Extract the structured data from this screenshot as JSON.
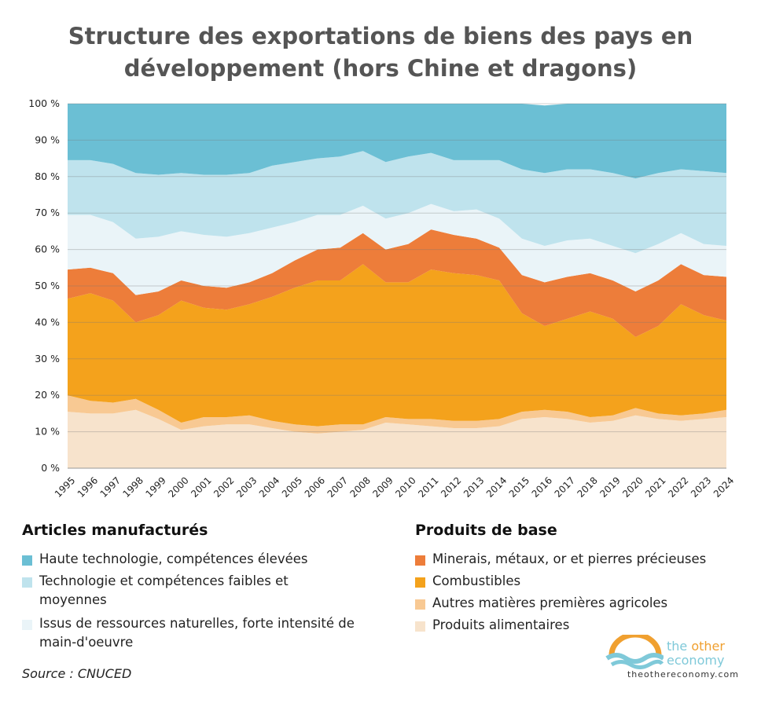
{
  "title": "Structure des exportations de biens des pays en développement (hors Chine et dragons)",
  "source": "Source : CNUCED",
  "brand": {
    "name_part1": "the ",
    "name_part2": "other",
    "name_line2": "economy",
    "url": "theothereconomy.com"
  },
  "legend": {
    "group1_title": "Articles manufacturés",
    "group2_title": "Produits de base",
    "group1_items": [
      {
        "label": "Haute technologie, compétences élevées",
        "color": "#6bbfd4"
      },
      {
        "label": "Technologie et compétences faibles et moyennes",
        "color": "#bfe3ed"
      },
      {
        "label": "Issus de ressources naturelles, forte intensité de main-d'oeuvre",
        "color": "#eaf4f8"
      }
    ],
    "group2_items": [
      {
        "label": "Minerais, métaux, or et pierres précieuses",
        "color": "#ed7d3a"
      },
      {
        "label": "Combustibles",
        "color": "#f4a21c"
      },
      {
        "label": "Autres matières premières agricoles",
        "color": "#f8c993"
      },
      {
        "label": "Produits alimentaires",
        "color": "#f7e3cc"
      }
    ]
  },
  "chart_data": {
    "type": "area",
    "stacked": true,
    "x": [
      "1995",
      "1996",
      "1997",
      "1998",
      "1999",
      "2000",
      "2001",
      "2002",
      "2003",
      "2004",
      "2005",
      "2006",
      "2007",
      "2008",
      "2009",
      "2010",
      "2011",
      "2012",
      "2013",
      "2014",
      "2015",
      "2016",
      "2017",
      "2018",
      "2019",
      "2020",
      "2021",
      "2022",
      "2023",
      "2024"
    ],
    "ylim": [
      0,
      100
    ],
    "yticks": [
      "0 %",
      "10 %",
      "20 %",
      "30 %",
      "40 %",
      "50 %",
      "60 %",
      "70 %",
      "80 %",
      "90 %",
      "100 %"
    ],
    "grid": true,
    "series": [
      {
        "name": "Produits alimentaires",
        "color": "#f7e3cc",
        "values": [
          15.5,
          15,
          15,
          16,
          13.5,
          10.5,
          11.5,
          12,
          12,
          11,
          10,
          9.5,
          10,
          10.5,
          12.5,
          12,
          11.5,
          11,
          11,
          11.5,
          13.5,
          14,
          13.5,
          12.5,
          13,
          14.5,
          13.5,
          13,
          13.5,
          14
        ]
      },
      {
        "name": "Autres matières premières agricoles",
        "color": "#f8c993",
        "values": [
          4.5,
          3.5,
          3,
          3,
          2.5,
          2,
          2.5,
          2,
          2.5,
          2,
          2,
          2,
          2,
          1.5,
          1.5,
          1.5,
          2,
          2,
          2,
          2,
          2,
          2,
          2,
          1.5,
          1.5,
          2,
          1.5,
          1.5,
          1.5,
          2
        ]
      },
      {
        "name": "Combustibles",
        "color": "#f4a21c",
        "values": [
          26.5,
          29.5,
          28,
          21,
          26,
          33.5,
          30,
          29.5,
          30.5,
          34,
          37.5,
          40,
          39.5,
          44,
          37,
          37.5,
          41,
          40.5,
          40,
          38,
          27,
          23,
          25.5,
          29,
          26.5,
          19.5,
          24,
          30.5,
          27,
          24.5
        ]
      },
      {
        "name": "Minerais, métaux, or et pierres précieuses",
        "color": "#ed7d3a",
        "values": [
          8,
          7,
          7.5,
          7.5,
          6.5,
          5.5,
          6,
          6,
          6,
          6.5,
          7.5,
          8.5,
          9,
          8.5,
          9,
          10.5,
          11,
          10.5,
          10,
          9,
          10.5,
          12,
          11.5,
          10.5,
          10.5,
          12.5,
          12.5,
          11,
          11,
          12
        ]
      },
      {
        "name": "Issus de ressources naturelles, forte intensité de main-d'oeuvre",
        "color": "#eaf4f8",
        "values": [
          15,
          14.5,
          14,
          15.5,
          15,
          13.5,
          14,
          14,
          13.5,
          12.5,
          10.5,
          9.5,
          9,
          7.5,
          8.5,
          8.5,
          7,
          6.5,
          8,
          8,
          10,
          10,
          10,
          9.5,
          9.5,
          10.5,
          10,
          8.5,
          8.5,
          8.5
        ]
      },
      {
        "name": "Technologie et compétences faibles et moyennes",
        "color": "#bfe3ed",
        "values": [
          15,
          15,
          16,
          18,
          17,
          16,
          16.5,
          17,
          16.5,
          17,
          16.5,
          15.5,
          16,
          15,
          15.5,
          15.5,
          14,
          14,
          13.5,
          16,
          19,
          20,
          19.5,
          19,
          20,
          20.5,
          19.5,
          17.5,
          20,
          20
        ]
      },
      {
        "name": "Haute technologie, compétences élevées",
        "color": "#6bbfd4",
        "values": [
          15.5,
          15.5,
          16.5,
          19,
          19.5,
          19,
          19.5,
          19.5,
          19,
          17,
          16,
          15,
          14.5,
          13,
          16,
          14.5,
          13.5,
          15.5,
          15.5,
          15.5,
          18,
          18.5,
          18,
          18,
          19,
          20.5,
          19,
          18,
          18.5,
          19
        ]
      }
    ]
  }
}
